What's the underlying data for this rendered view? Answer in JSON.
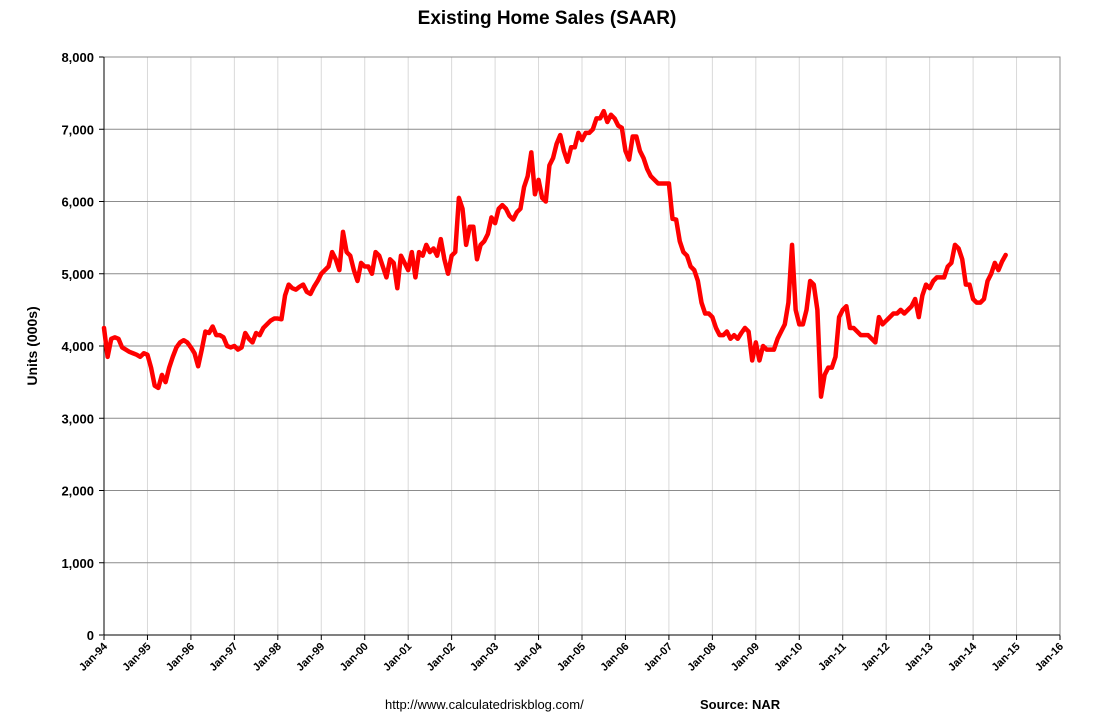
{
  "chart_data": {
    "type": "line",
    "title": "Existing Home Sales (SAAR)",
    "y_label": "Units (000s)",
    "source_url": "http://www.calculatedriskblog.com/",
    "source": "Source: NAR",
    "categories": [
      "Jan-94",
      null,
      null,
      null,
      null,
      null,
      null,
      null,
      null,
      null,
      null,
      null,
      "Jan-95",
      null,
      null,
      null,
      null,
      null,
      null,
      null,
      null,
      null,
      null,
      null,
      "Jan-96",
      null,
      null,
      null,
      null,
      null,
      null,
      null,
      null,
      null,
      null,
      null,
      "Jan-97",
      null,
      null,
      null,
      null,
      null,
      null,
      null,
      null,
      null,
      null,
      null,
      "Jan-98",
      null,
      null,
      null,
      null,
      null,
      null,
      null,
      null,
      null,
      null,
      null,
      "Jan-99",
      null,
      null,
      null,
      null,
      null,
      null,
      null,
      null,
      null,
      null,
      null,
      "Jan-00",
      null,
      null,
      null,
      null,
      null,
      null,
      null,
      null,
      null,
      null,
      null,
      "Jan-01",
      null,
      null,
      null,
      null,
      null,
      null,
      null,
      null,
      null,
      null,
      null,
      "Jan-02",
      null,
      null,
      null,
      null,
      null,
      null,
      null,
      null,
      null,
      null,
      null,
      "Jan-03",
      null,
      null,
      null,
      null,
      null,
      null,
      null,
      null,
      null,
      null,
      null,
      "Jan-04",
      null,
      null,
      null,
      null,
      null,
      null,
      null,
      null,
      null,
      null,
      null,
      "Jan-05",
      null,
      null,
      null,
      null,
      null,
      null,
      null,
      null,
      null,
      null,
      null,
      "Jan-06",
      null,
      null,
      null,
      null,
      null,
      null,
      null,
      null,
      null,
      null,
      null,
      "Jan-07",
      null,
      null,
      null,
      null,
      null,
      null,
      null,
      null,
      null,
      null,
      null,
      "Jan-08",
      null,
      null,
      null,
      null,
      null,
      null,
      null,
      null,
      null,
      null,
      null,
      "Jan-09",
      null,
      null,
      null,
      null,
      null,
      null,
      null,
      null,
      null,
      null,
      null,
      "Jan-10",
      null,
      null,
      null,
      null,
      null,
      null,
      null,
      null,
      null,
      null,
      null,
      "Jan-11",
      null,
      null,
      null,
      null,
      null,
      null,
      null,
      null,
      null,
      null,
      null,
      "Jan-12",
      null,
      null,
      null,
      null,
      null,
      null,
      null,
      null,
      null,
      null,
      null,
      "Jan-13",
      null,
      null,
      null,
      null,
      null,
      null,
      null,
      null,
      null,
      null,
      null,
      "Jan-14",
      null,
      null,
      null,
      null,
      null,
      null,
      null,
      null,
      null,
      null,
      null,
      "Jan-15",
      null,
      null,
      null,
      null,
      null,
      null,
      null,
      null,
      null,
      null,
      null,
      "Jan-16"
    ],
    "values": [
      4250,
      3850,
      4100,
      4120,
      4100,
      3980,
      3950,
      3920,
      3900,
      3880,
      3850,
      3900,
      3880,
      3700,
      3450,
      3420,
      3600,
      3500,
      3700,
      3850,
      3980,
      4050,
      4080,
      4050,
      3980,
      3900,
      3720,
      3950,
      4200,
      4180,
      4270,
      4150,
      4150,
      4120,
      4000,
      3980,
      4000,
      3950,
      3980,
      4180,
      4100,
      4050,
      4180,
      4150,
      4250,
      4300,
      4350,
      4380,
      4380,
      4370,
      4700,
      4850,
      4800,
      4780,
      4820,
      4850,
      4750,
      4720,
      4820,
      4900,
      5000,
      5050,
      5100,
      5300,
      5200,
      5050,
      5580,
      5300,
      5250,
      5050,
      4900,
      5150,
      5100,
      5100,
      5000,
      5300,
      5250,
      5100,
      4950,
      5200,
      5150,
      4800,
      5250,
      5150,
      5050,
      5300,
      4950,
      5300,
      5250,
      5400,
      5300,
      5350,
      5250,
      5480,
      5200,
      5000,
      5250,
      5300,
      6050,
      5900,
      5400,
      5650,
      5650,
      5200,
      5400,
      5450,
      5550,
      5780,
      5700,
      5900,
      5950,
      5900,
      5800,
      5750,
      5850,
      5900,
      6200,
      6350,
      6680,
      6100,
      6300,
      6050,
      6000,
      6500,
      6600,
      6800,
      6920,
      6700,
      6550,
      6750,
      6750,
      6950,
      6850,
      6950,
      6950,
      7000,
      7150,
      7150,
      7250,
      7100,
      7200,
      7150,
      7050,
      7020,
      6700,
      6580,
      6900,
      6900,
      6700,
      6600,
      6450,
      6350,
      6300,
      6250,
      6250,
      6250,
      6250,
      5760,
      5750,
      5450,
      5300,
      5250,
      5100,
      5050,
      4900,
      4600,
      4450,
      4450,
      4400,
      4250,
      4150,
      4150,
      4200,
      4100,
      4150,
      4100,
      4180,
      4250,
      4200,
      3800,
      4050,
      3800,
      4000,
      3950,
      3950,
      3950,
      4100,
      4200,
      4300,
      4600,
      5400,
      4500,
      4300,
      4300,
      4500,
      4900,
      4850,
      4500,
      3300,
      3600,
      3700,
      3700,
      3850,
      4400,
      4500,
      4550,
      4250,
      4250,
      4200,
      4150,
      4150,
      4150,
      4100,
      4050,
      4400,
      4300,
      4350,
      4400,
      4450,
      4450,
      4500,
      4450,
      4500,
      4550,
      4650,
      4400,
      4700,
      4850,
      4800,
      4900,
      4950,
      4950,
      4950,
      5100,
      5150,
      5400,
      5350,
      5200,
      4850,
      4850,
      4650,
      4600,
      4600,
      4650,
      4900,
      5000,
      5150,
      5050,
      5170,
      5260,
      null,
      null,
      null,
      null,
      null,
      null,
      null,
      null,
      null,
      null,
      null,
      null,
      null,
      null,
      null
    ],
    "color": "#ff0000",
    "ylim": [
      0,
      8000
    ],
    "yticks": [
      0,
      {
        "value": 1000,
        "label": "1,000"
      },
      {
        "value": 2000,
        "label": "2,000"
      },
      {
        "value": 3000,
        "label": "3,000"
      },
      {
        "value": 4000,
        "label": "4,000"
      },
      {
        "value": 5000,
        "label": "5,000"
      },
      {
        "value": 6000,
        "label": "6,000"
      },
      {
        "value": 7000,
        "label": "7,000"
      },
      {
        "value": 8000,
        "label": "8,000"
      }
    ],
    "grid": true
  }
}
